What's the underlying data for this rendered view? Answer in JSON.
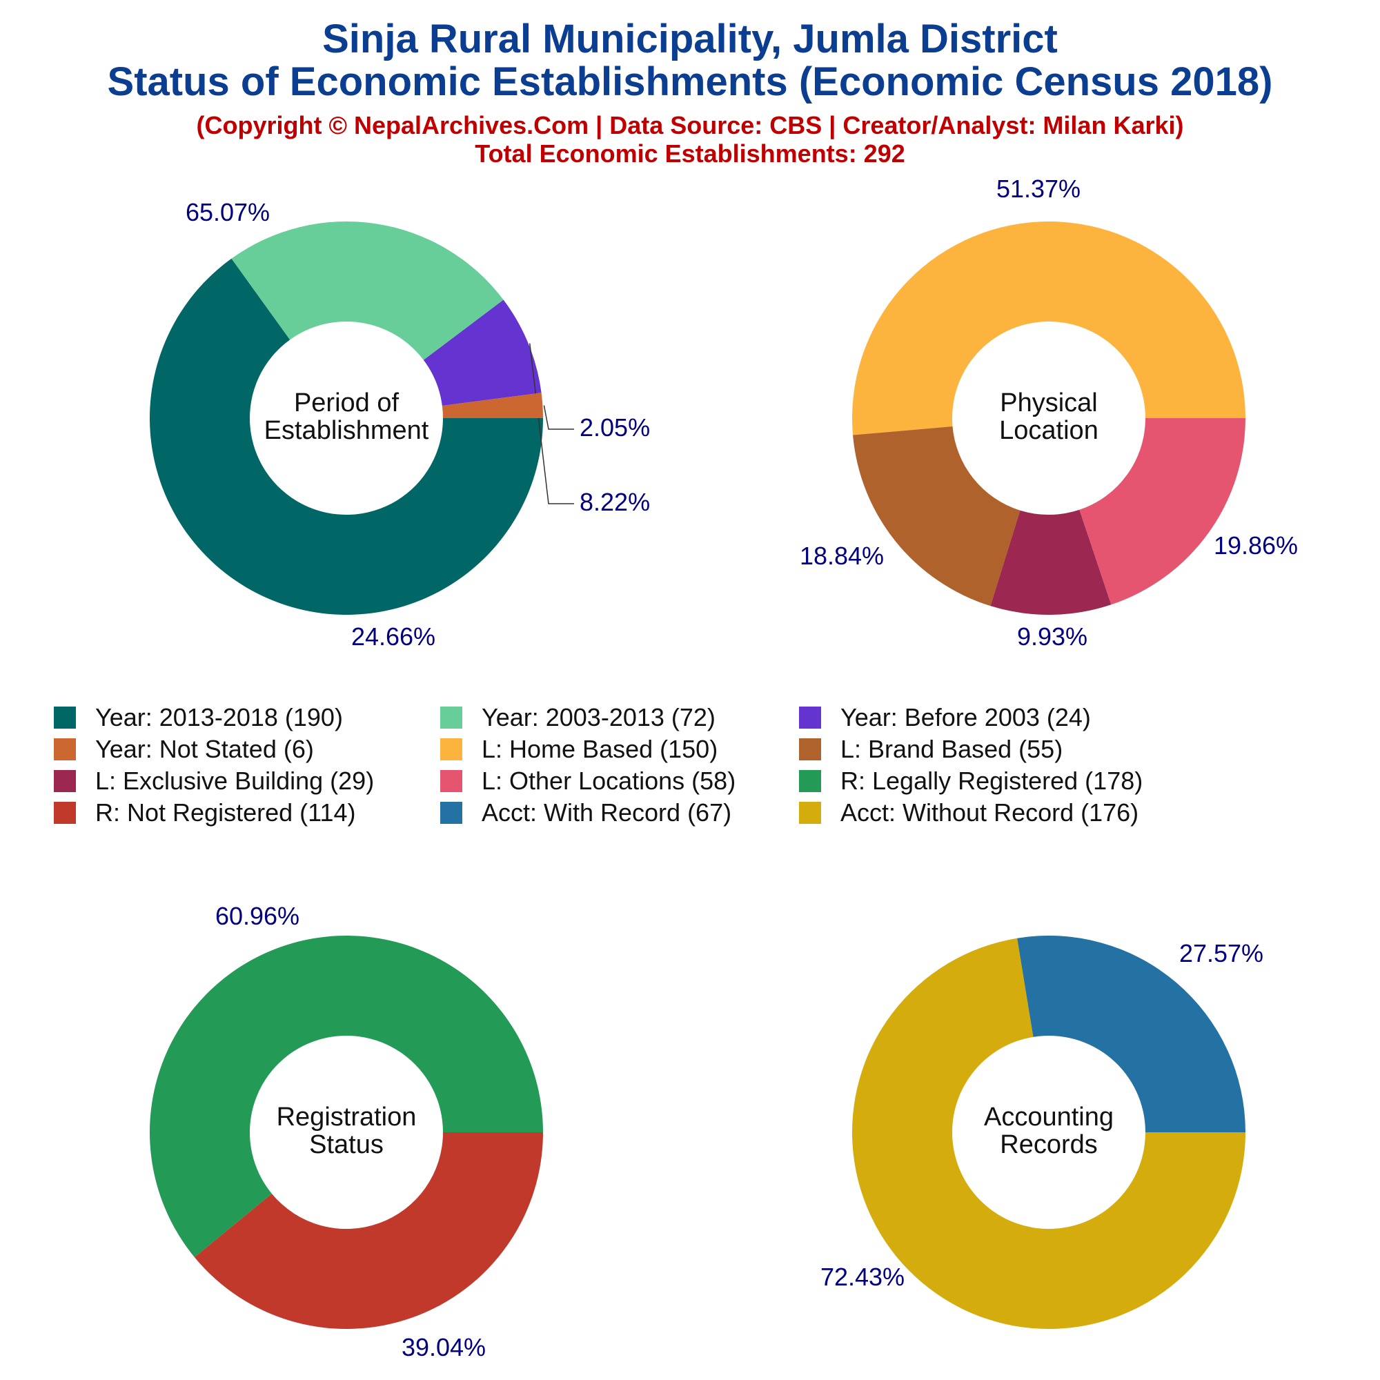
{
  "header": {
    "title_line1": "Sinja Rural Municipality, Jumla District",
    "title_line2": "Status of Economic Establishments (Economic Census 2018)",
    "subtitle_line1": "(Copyright © NepalArchives.Com | Data Source: CBS | Creator/Analyst: Milan Karki)",
    "subtitle_line2": "Total Economic Establishments: 292"
  },
  "colors": {
    "title": "#0b3d91",
    "subtitle": "#c00000",
    "percent_label": "#000080"
  },
  "legend": [
    {
      "label": "Year: 2013-2018 (190)",
      "color": "#006766"
    },
    {
      "label": "Year: 2003-2013 (72)",
      "color": "#68ce99"
    },
    {
      "label": "Year: Before 2003 (24)",
      "color": "#6534d0"
    },
    {
      "label": "Year: Not Stated (6)",
      "color": "#cd6731"
    },
    {
      "label": "L: Home Based (150)",
      "color": "#fdb43f"
    },
    {
      "label": "L: Brand Based (55)",
      "color": "#b0622d"
    },
    {
      "label": "L: Exclusive Building (29)",
      "color": "#9c2852"
    },
    {
      "label": "L: Other Locations (58)",
      "color": "#e55570"
    },
    {
      "label": "R: Legally Registered (178)",
      "color": "#239b57"
    },
    {
      "label": "R: Not Registered (114)",
      "color": "#c1392b"
    },
    {
      "label": "Acct: With Record (67)",
      "color": "#2471a3"
    },
    {
      "label": "Acct: Without Record (176)",
      "color": "#d4ac0d"
    }
  ],
  "chart_data": [
    {
      "type": "pie",
      "center_label": [
        "Period of",
        "Establishment"
      ],
      "slices": [
        {
          "name": "Year: 2013-2018",
          "value": 190,
          "percent_label": "65.07%",
          "color": "#006766"
        },
        {
          "name": "Year: 2003-2013",
          "value": 72,
          "percent_label": "24.66%",
          "color": "#68ce99"
        },
        {
          "name": "Year: Before 2003",
          "value": 24,
          "percent_label": "8.22%",
          "color": "#6534d0"
        },
        {
          "name": "Year: Not Stated",
          "value": 6,
          "percent_label": "2.05%",
          "color": "#cd6731"
        }
      ]
    },
    {
      "type": "pie",
      "center_label": [
        "Physical",
        "Location"
      ],
      "slices": [
        {
          "name": "L: Home Based",
          "value": 150,
          "percent_label": "51.37%",
          "color": "#fdb43f"
        },
        {
          "name": "L: Brand Based",
          "value": 55,
          "percent_label": "18.84%",
          "color": "#b0622d"
        },
        {
          "name": "L: Exclusive Building",
          "value": 29,
          "percent_label": "9.93%",
          "color": "#9c2852"
        },
        {
          "name": "L: Other Locations",
          "value": 58,
          "percent_label": "19.86%",
          "color": "#e55570"
        }
      ]
    },
    {
      "type": "pie",
      "center_label": [
        "Registration",
        "Status"
      ],
      "slices": [
        {
          "name": "R: Legally Registered",
          "value": 178,
          "percent_label": "60.96%",
          "color": "#239b57"
        },
        {
          "name": "R: Not Registered",
          "value": 114,
          "percent_label": "39.04%",
          "color": "#c1392b"
        }
      ]
    },
    {
      "type": "pie",
      "center_label": [
        "Accounting",
        "Records"
      ],
      "slices": [
        {
          "name": "Acct: Without Record",
          "value": 176,
          "percent_label": "72.43%",
          "color": "#d4ac0d"
        },
        {
          "name": "Acct: With Record",
          "value": 67,
          "percent_label": "27.57%",
          "color": "#2471a3"
        }
      ]
    }
  ]
}
